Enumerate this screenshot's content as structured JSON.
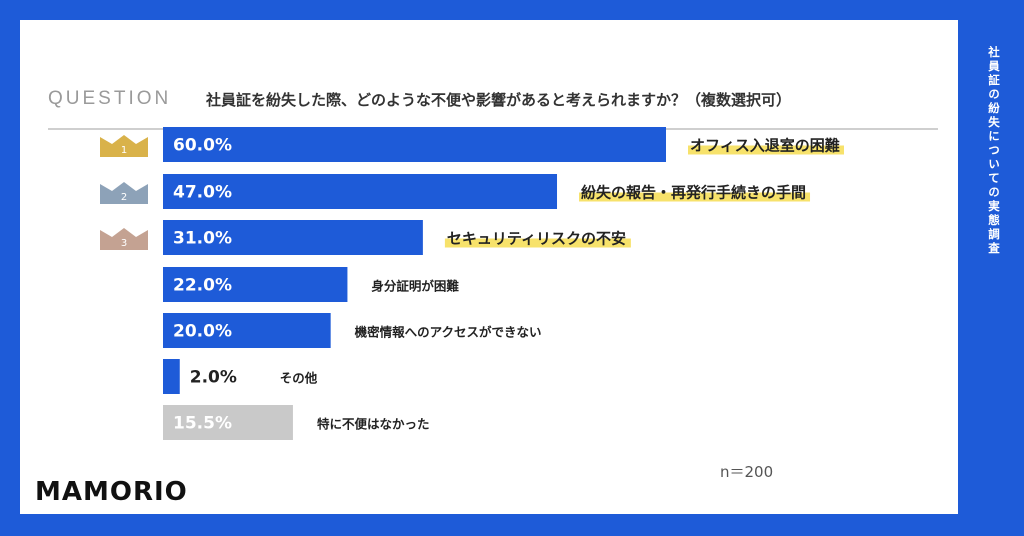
{
  "question_label": "QUESTION",
  "question_text": "社員証を紛失した際、どのような不便や影響があると考えられますか？（複数選択可）",
  "side_title": "社員証の紛失についての実態調査",
  "sample_size": "n＝200",
  "logo_text": "MAMORIO",
  "colors": {
    "background": "#1e5bd8",
    "bar_primary": "#1e5bd8",
    "bar_none": "#c9c9c9",
    "highlight": "#f7e26b",
    "rank1": "#d9b24a",
    "rank2": "#8da2b8",
    "rank3": "#c4a292"
  },
  "chart_data": {
    "type": "bar",
    "orientation": "horizontal",
    "categories": [
      "オフィス入退室の困難",
      "紛失の報告・再発行手続きの手間",
      "セキュリティリスクの不安",
      "身分証明が困難",
      "機密情報へのアクセスができない",
      "その他",
      "特に不便はなかった"
    ],
    "values": [
      60.0,
      47.0,
      31.0,
      22.0,
      20.0,
      2.0,
      15.5
    ],
    "value_labels": [
      "60.0%",
      "47.0%",
      "31.0%",
      "22.0%",
      "20.0%",
      "2.0%",
      "15.5%"
    ],
    "ranks": [
      "1",
      "2",
      "3"
    ],
    "xlim": [
      0,
      100
    ],
    "grid": false,
    "legend": "none"
  }
}
